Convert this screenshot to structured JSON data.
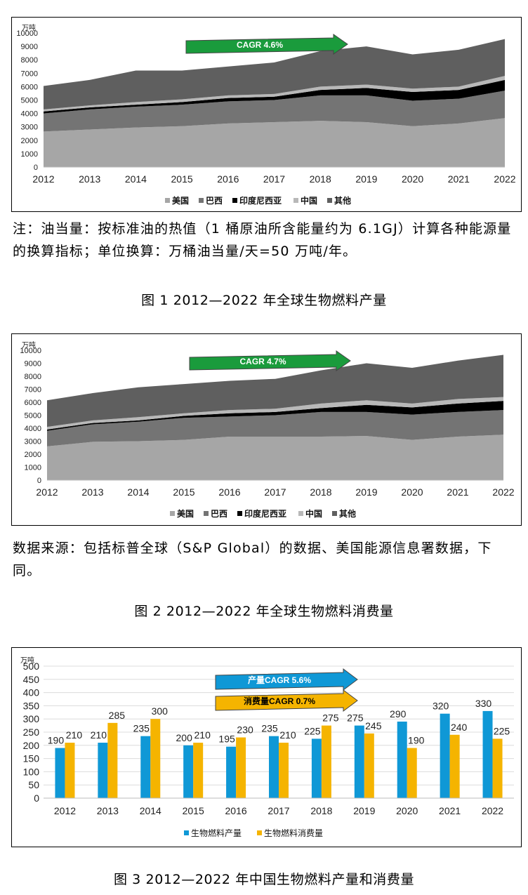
{
  "chart_data": [
    {
      "type": "area",
      "stacked": true,
      "unit": "万吨",
      "ylim": [
        0,
        10000
      ],
      "yticks": [
        0,
        1000,
        2000,
        3000,
        4000,
        5000,
        6000,
        7000,
        8000,
        9000,
        10000
      ],
      "x": [
        "2012",
        "2013",
        "2014",
        "2015",
        "2016",
        "2017",
        "2018",
        "2019",
        "2020",
        "2021",
        "2022"
      ],
      "series": [
        {
          "name": "美国",
          "color": "#a6a6a6",
          "values": [
            2650,
            2800,
            2950,
            3050,
            3250,
            3350,
            3450,
            3350,
            3050,
            3250,
            3650
          ]
        },
        {
          "name": "巴西",
          "color": "#747474",
          "values": [
            1350,
            1500,
            1550,
            1600,
            1650,
            1650,
            1900,
            2000,
            1900,
            1850,
            2050
          ]
        },
        {
          "name": "印度尼西亚",
          "color": "#000000",
          "values": [
            150,
            150,
            150,
            200,
            250,
            250,
            400,
            550,
            650,
            650,
            800
          ]
        },
        {
          "name": "中国",
          "color": "#b8b8b8",
          "values": [
            150,
            150,
            200,
            200,
            200,
            200,
            250,
            250,
            250,
            250,
            300
          ]
        },
        {
          "name": "其他",
          "color": "#5f5f5f",
          "values": [
            1750,
            1900,
            2350,
            2150,
            2150,
            2350,
            2650,
            2850,
            2550,
            2750,
            2750
          ]
        }
      ],
      "arrows": [
        {
          "label": "CAGR 4.6%",
          "color": "#1a9b3c"
        }
      ],
      "legend_position": "bottom"
    },
    {
      "type": "area",
      "stacked": true,
      "unit": "万吨",
      "ylim": [
        0,
        10000
      ],
      "yticks": [
        0,
        1000,
        2000,
        3000,
        4000,
        5000,
        6000,
        7000,
        8000,
        9000,
        10000
      ],
      "x": [
        "2012",
        "2013",
        "2014",
        "2015",
        "2016",
        "2017",
        "2018",
        "2019",
        "2020",
        "2021",
        "2022"
      ],
      "series": [
        {
          "name": "美国",
          "color": "#a6a6a6",
          "values": [
            2600,
            2950,
            3000,
            3100,
            3350,
            3350,
            3350,
            3400,
            3100,
            3350,
            3500
          ]
        },
        {
          "name": "巴西",
          "color": "#747474",
          "values": [
            1200,
            1350,
            1500,
            1700,
            1550,
            1650,
            1900,
            1850,
            1950,
            1900,
            1900
          ]
        },
        {
          "name": "印度尼西亚",
          "color": "#000000",
          "values": [
            100,
            100,
            100,
            150,
            250,
            250,
            300,
            550,
            550,
            650,
            700
          ]
        },
        {
          "name": "中国",
          "color": "#b8b8b8",
          "values": [
            200,
            200,
            250,
            200,
            250,
            250,
            350,
            350,
            300,
            350,
            300
          ]
        },
        {
          "name": "其他",
          "color": "#5f5f5f",
          "values": [
            2050,
            2100,
            2300,
            2250,
            2250,
            2300,
            2550,
            2850,
            2750,
            2950,
            3250
          ]
        }
      ],
      "arrows": [
        {
          "label": "CAGR 4.7%",
          "color": "#1a9b3c"
        }
      ],
      "legend_position": "bottom"
    },
    {
      "type": "bar",
      "unit": "万吨",
      "ylim": [
        0,
        500
      ],
      "yticks": [
        0,
        50,
        100,
        150,
        200,
        250,
        300,
        350,
        400,
        450,
        500
      ],
      "categories": [
        "2012",
        "2013",
        "2014",
        "2015",
        "2016",
        "2017",
        "2018",
        "2019",
        "2020",
        "2021",
        "2022"
      ],
      "series": [
        {
          "name": "生物燃料产量",
          "color": "#0f98d6",
          "values": [
            190,
            210,
            235,
            200,
            195,
            235,
            225,
            275,
            290,
            320,
            330
          ]
        },
        {
          "name": "生物燃料消费量",
          "color": "#f5b400",
          "values": [
            210,
            285,
            300,
            210,
            230,
            210,
            275,
            245,
            190,
            240,
            225
          ]
        }
      ],
      "arrows": [
        {
          "label": "产量CAGR 5.6%",
          "color": "#0f98d6"
        },
        {
          "label": "消费量CAGR 0.7%",
          "color": "#f5b400"
        }
      ],
      "legend_position": "bottom"
    }
  ],
  "notes": {
    "note1": "注：油当量：按标准油的热值（1 桶原油所含能量约为 6.1GJ）计算各种能源量的换算指标；单位换算：万桶油当量/天=50 万吨/年。",
    "note2": "数据来源：包括标普全球（S&P Global）的数据、美国能源信息署数据，下同。"
  },
  "captions": {
    "fig1": "图 1 2012—2022 年全球生物燃料产量",
    "fig2": "图 2 2012—2022 年全球生物燃料消费量",
    "fig3": "图 3 2012—2022 年中国生物燃料产量和消费量"
  }
}
